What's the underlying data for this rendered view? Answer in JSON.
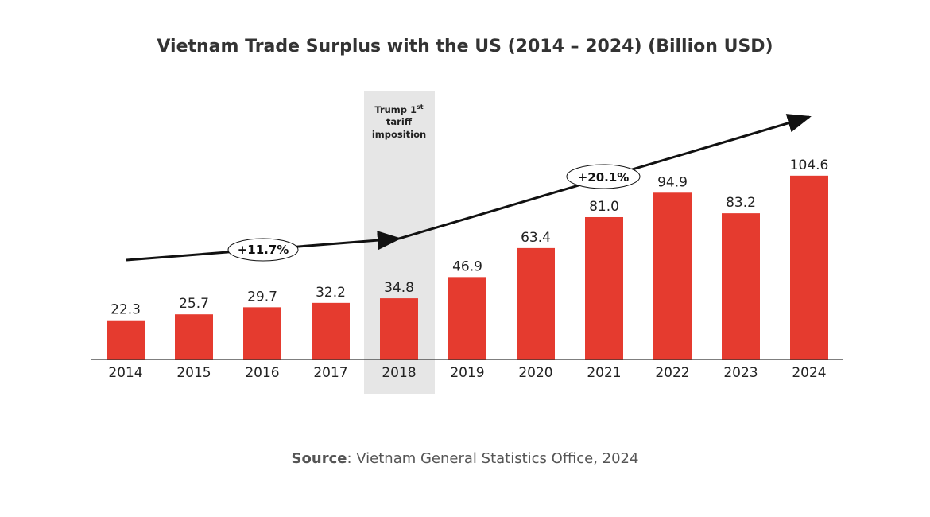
{
  "chart_data": {
    "type": "bar",
    "title": "Vietnam Trade Surplus with the US (2014 – 2024) (Billion USD)",
    "categories": [
      "2014",
      "2015",
      "2016",
      "2017",
      "2018",
      "2019",
      "2020",
      "2021",
      "2022",
      "2023",
      "2024"
    ],
    "values": [
      22.3,
      25.7,
      29.7,
      32.2,
      34.8,
      46.9,
      63.4,
      81.0,
      94.9,
      83.2,
      104.6
    ],
    "value_labels": [
      "22.3",
      "25.7",
      "29.7",
      "32.2",
      "34.8",
      "46.9",
      "63.4",
      "81.0",
      "94.9",
      "83.2",
      "104.6"
    ],
    "bar_color": "#e53b2f",
    "highlight": {
      "category": "2018",
      "label_lines": [
        "Trump 1",
        "tariff",
        "imposition"
      ],
      "superscript": "st",
      "color": "#e6e6e6"
    },
    "trend_annotations": [
      {
        "label": "+11.7%",
        "from": "2014",
        "to": "2018"
      },
      {
        "label": "+20.1%",
        "from": "2018",
        "to": "2024"
      }
    ],
    "grid": false,
    "source_label": "Source",
    "source_text": ": Vietnam General Statistics Office, 2024"
  }
}
